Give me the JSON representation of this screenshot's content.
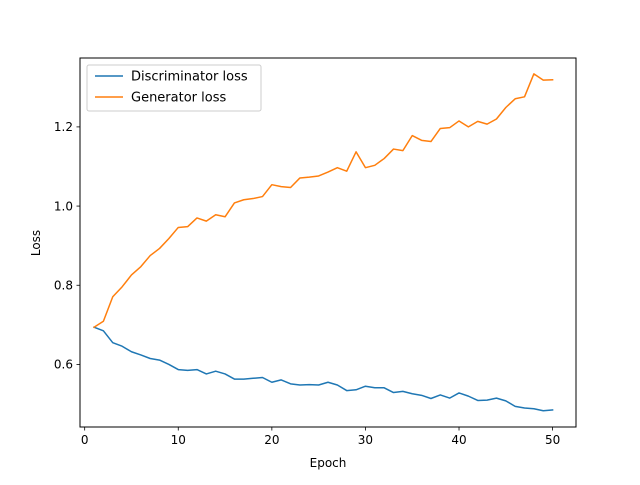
{
  "chart_data": {
    "type": "line",
    "xlabel": "Epoch",
    "ylabel": "Loss",
    "xlim": [
      -0.5,
      52.5
    ],
    "ylim": [
      0.442,
      1.374
    ],
    "xticks": [
      0,
      10,
      20,
      30,
      40,
      50
    ],
    "yticks": [
      0.6,
      0.8,
      1.0,
      1.2
    ],
    "xtick_labels": [
      "0",
      "10",
      "20",
      "30",
      "40",
      "50"
    ],
    "ytick_labels": [
      "0.6",
      "0.8",
      "1.0",
      "1.2"
    ],
    "legend_position": "top-left",
    "grid": false,
    "x": [
      1,
      2,
      3,
      4,
      5,
      6,
      7,
      8,
      9,
      10,
      11,
      12,
      13,
      14,
      15,
      16,
      17,
      18,
      19,
      20,
      21,
      22,
      23,
      24,
      25,
      26,
      27,
      28,
      29,
      30,
      31,
      32,
      33,
      34,
      35,
      36,
      37,
      38,
      39,
      40,
      41,
      42,
      43,
      44,
      45,
      46,
      47,
      48,
      49,
      50
    ],
    "series": [
      {
        "name": "Discriminator loss",
        "color": "#1f77b4",
        "values": [
          0.694,
          0.685,
          0.655,
          0.646,
          0.632,
          0.624,
          0.615,
          0.611,
          0.6,
          0.587,
          0.585,
          0.587,
          0.576,
          0.583,
          0.576,
          0.563,
          0.563,
          0.565,
          0.567,
          0.555,
          0.561,
          0.551,
          0.548,
          0.549,
          0.548,
          0.555,
          0.548,
          0.534,
          0.536,
          0.545,
          0.541,
          0.541,
          0.529,
          0.532,
          0.526,
          0.522,
          0.514,
          0.523,
          0.515,
          0.528,
          0.52,
          0.509,
          0.51,
          0.515,
          0.508,
          0.494,
          0.49,
          0.488,
          0.483,
          0.485
        ]
      },
      {
        "name": "Generator loss",
        "color": "#ff7f0e",
        "values": [
          0.694,
          0.709,
          0.771,
          0.796,
          0.826,
          0.847,
          0.875,
          0.893,
          0.918,
          0.946,
          0.948,
          0.97,
          0.962,
          0.978,
          0.973,
          1.008,
          1.016,
          1.019,
          1.024,
          1.054,
          1.049,
          1.047,
          1.071,
          1.073,
          1.076,
          1.086,
          1.097,
          1.088,
          1.137,
          1.097,
          1.103,
          1.12,
          1.144,
          1.14,
          1.178,
          1.166,
          1.163,
          1.196,
          1.198,
          1.215,
          1.2,
          1.214,
          1.207,
          1.22,
          1.249,
          1.271,
          1.276,
          1.334,
          1.318,
          1.319
        ]
      }
    ]
  }
}
